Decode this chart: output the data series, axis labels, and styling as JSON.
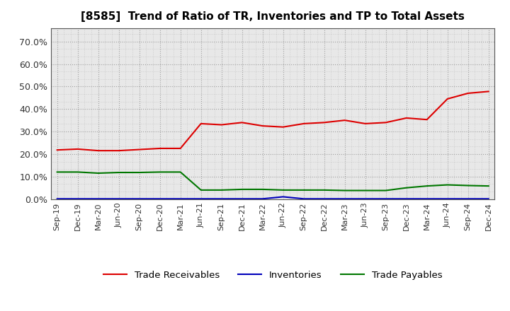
{
  "title": "[8585]  Trend of Ratio of TR, Inventories and TP to Total Assets",
  "labels": [
    "Sep-19",
    "Dec-19",
    "Mar-20",
    "Jun-20",
    "Sep-20",
    "Dec-20",
    "Mar-21",
    "Jun-21",
    "Sep-21",
    "Dec-21",
    "Mar-22",
    "Jun-22",
    "Sep-22",
    "Dec-22",
    "Mar-23",
    "Jun-23",
    "Sep-23",
    "Dec-23",
    "Mar-24",
    "Jun-24",
    "Sep-24",
    "Dec-24"
  ],
  "trade_receivables": [
    0.218,
    0.222,
    0.215,
    0.215,
    0.22,
    0.225,
    0.225,
    0.335,
    0.33,
    0.34,
    0.325,
    0.32,
    0.335,
    0.34,
    0.35,
    0.335,
    0.34,
    0.36,
    0.353,
    0.445,
    0.47,
    0.478
  ],
  "inventories": [
    0.001,
    0.001,
    0.001,
    0.001,
    0.001,
    0.001,
    0.001,
    0.001,
    0.001,
    0.001,
    0.001,
    0.01,
    0.001,
    0.001,
    0.001,
    0.001,
    0.001,
    0.001,
    0.001,
    0.001,
    0.001,
    0.001
  ],
  "trade_payables": [
    0.12,
    0.12,
    0.115,
    0.118,
    0.118,
    0.12,
    0.12,
    0.04,
    0.04,
    0.043,
    0.043,
    0.04,
    0.04,
    0.04,
    0.038,
    0.038,
    0.038,
    0.05,
    0.058,
    0.063,
    0.06,
    0.058
  ],
  "tr_color": "#dd0000",
  "inv_color": "#0000bb",
  "tp_color": "#007700",
  "ylim": [
    0.0,
    0.76
  ],
  "yticks": [
    0.0,
    0.1,
    0.2,
    0.3,
    0.4,
    0.5,
    0.6,
    0.7
  ],
  "background_color": "#ffffff",
  "plot_bg_color": "#e8e8e8",
  "grid_color": "#999999",
  "legend_labels": [
    "Trade Receivables",
    "Inventories",
    "Trade Payables"
  ],
  "title_fontsize": 11,
  "tick_fontsize": 8,
  "ytick_fontsize": 9
}
